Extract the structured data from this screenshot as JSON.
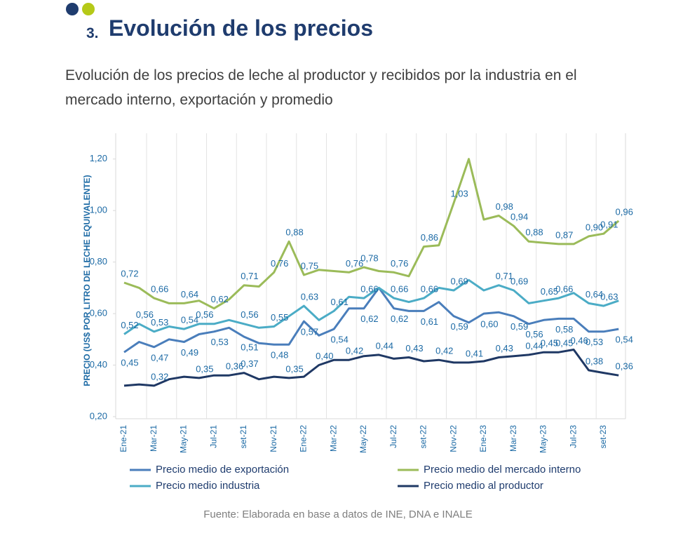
{
  "header": {
    "section_number": "3.",
    "title": "Evolución de los precios",
    "subtitle": "Evolución de los precios de leche al productor y recibidos por la industria en el mercado interno, exportación y promedio"
  },
  "chart_data": {
    "type": "line",
    "y_axis_label": "PRECIO (US$ POR LITRO DE LECHE EQUIVALENTE)",
    "categories": [
      "Ene-21",
      null,
      "Mar-21",
      null,
      "May-21",
      null,
      "Jul-21",
      null,
      "set-21",
      null,
      "Nov-21",
      null,
      "Ene-22",
      null,
      "Mar-22",
      null,
      "May-22",
      null,
      "Jul-22",
      null,
      "set-22",
      null,
      "Nov-22",
      null,
      "Ene-23",
      null,
      "Mar-23",
      null,
      "May-23",
      null,
      "Jul-23",
      null,
      "set-23",
      null
    ],
    "ylim": [
      0.2,
      1.3
    ],
    "yticks": [
      {
        "value": 0.2,
        "label": "0,20"
      },
      {
        "value": 0.4,
        "label": "0,40"
      },
      {
        "value": 0.6,
        "label": "0,60"
      },
      {
        "value": 0.8,
        "label": "0,80"
      },
      {
        "value": 1.0,
        "label": "1,00"
      },
      {
        "value": 1.2,
        "label": "1,20"
      }
    ],
    "series": [
      {
        "name": "Precio medio de exportación",
        "color": "#4a7ebb",
        "values": [
          0.45,
          0.49,
          0.47,
          0.5,
          0.49,
          0.52,
          0.53,
          0.545,
          0.51,
          0.485,
          0.48,
          0.48,
          0.57,
          0.515,
          0.54,
          0.62,
          0.62,
          0.7,
          0.62,
          0.61,
          0.61,
          0.645,
          0.59,
          0.565,
          0.6,
          0.605,
          0.59,
          0.56,
          0.575,
          0.58,
          0.58,
          0.53,
          0.53,
          0.54
        ],
        "value_labels": [
          "0,45",
          null,
          "0,47",
          null,
          "0,49",
          null,
          "0,53",
          null,
          "0,51",
          null,
          "0,48",
          null,
          "0,57",
          null,
          "0,54",
          null,
          "0,62",
          null,
          "0,62",
          null,
          "0,61",
          null,
          "0,59",
          null,
          "0,60",
          null,
          "0,59",
          "0,56",
          null,
          "0,58",
          null,
          "0,53",
          null,
          "0,54"
        ]
      },
      {
        "name": "Precio medio del mercado interno",
        "color": "#9bbb59",
        "values": [
          0.72,
          0.7,
          0.66,
          0.64,
          0.64,
          0.65,
          0.62,
          0.655,
          0.71,
          0.705,
          0.76,
          0.88,
          0.75,
          0.77,
          0.765,
          0.76,
          0.78,
          0.765,
          0.76,
          0.745,
          0.86,
          0.865,
          1.03,
          1.2,
          0.965,
          0.98,
          0.94,
          0.88,
          0.875,
          0.87,
          0.87,
          0.9,
          0.91,
          0.96
        ],
        "value_labels": [
          "0,72",
          null,
          "0,66",
          null,
          "0,64",
          null,
          "0,62",
          null,
          "0,71",
          null,
          "0,76",
          "0,88",
          "0,75",
          null,
          null,
          "0,76",
          "0,78",
          null,
          "0,76",
          null,
          "0,86",
          null,
          "1,03",
          null,
          null,
          "0,98",
          "0,94",
          "0,88",
          null,
          "0,87",
          null,
          "0,90",
          "0,91",
          "0,96"
        ]
      },
      {
        "name": "Precio medio industria",
        "color": "#4bacc6",
        "values": [
          0.52,
          0.56,
          0.53,
          0.55,
          0.54,
          0.56,
          0.56,
          0.575,
          0.56,
          0.545,
          0.55,
          0.59,
          0.63,
          0.575,
          0.61,
          0.665,
          0.66,
          0.7,
          0.66,
          0.645,
          0.66,
          0.7,
          0.69,
          0.73,
          0.69,
          0.71,
          0.69,
          0.64,
          0.65,
          0.66,
          0.68,
          0.64,
          0.63,
          0.65
        ],
        "value_labels": [
          "0,52",
          "0,56",
          "0,53",
          null,
          "0,54",
          "0,56",
          null,
          null,
          "0,56",
          null,
          "0,55",
          null,
          "0,63",
          null,
          "0,61",
          null,
          "0,66",
          null,
          "0,66",
          null,
          "0,66",
          null,
          "0,69",
          null,
          null,
          "0,71",
          "0,69",
          null,
          "0,65",
          "0,66",
          null,
          "0,64",
          "0,63",
          null
        ]
      },
      {
        "name": "Precio medio al productor",
        "color": "#1f3864",
        "values": [
          0.32,
          0.325,
          0.32,
          0.345,
          0.355,
          0.35,
          0.36,
          0.36,
          0.37,
          0.345,
          0.355,
          0.35,
          0.355,
          0.4,
          0.42,
          0.42,
          0.435,
          0.44,
          0.425,
          0.43,
          0.415,
          0.42,
          0.41,
          0.41,
          0.415,
          0.43,
          0.435,
          0.44,
          0.45,
          0.45,
          0.46,
          0.38,
          0.37,
          0.36
        ],
        "value_labels": [
          null,
          null,
          "0,32",
          null,
          null,
          "0,35",
          null,
          "0,36",
          "0,37",
          null,
          null,
          "0,35",
          null,
          "0,40",
          null,
          "0,42",
          null,
          "0,44",
          null,
          "0,43",
          null,
          "0,42",
          null,
          "0,41",
          null,
          "0,43",
          null,
          "0,44",
          "0,45",
          "0,45",
          "0,46",
          "0,38",
          null,
          "0,36"
        ]
      }
    ]
  },
  "source": "Fuente: Elaborada en base a datos de INE, DNA e INALE"
}
